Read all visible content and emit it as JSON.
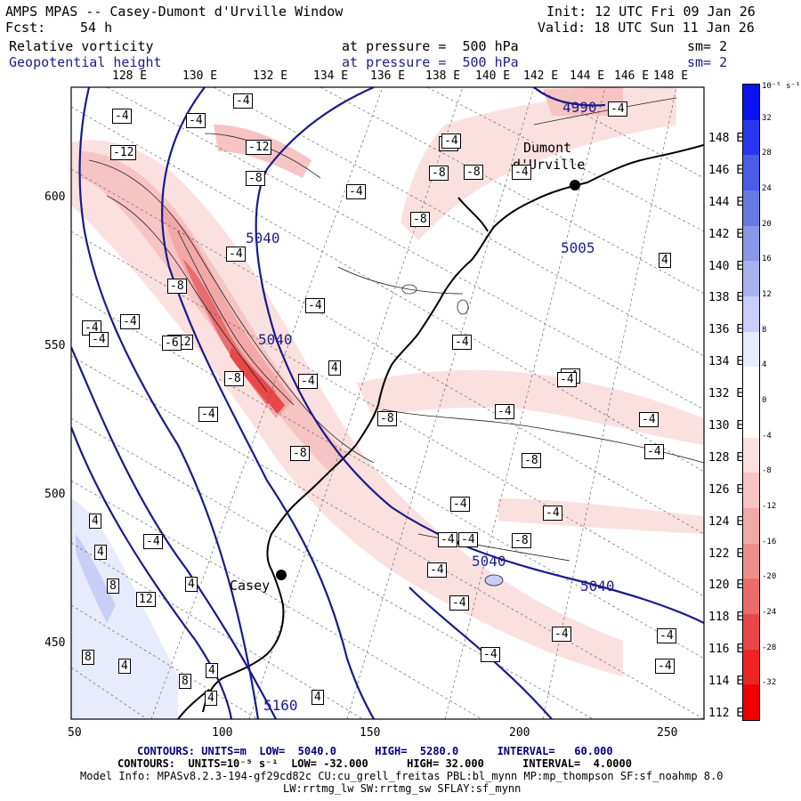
{
  "header": {
    "title": "AMPS MPAS -- Casey-Dumont d'Urville Window",
    "init": "Init: 12 UTC Fri 09 Jan 26",
    "fcst_label": "Fcst:",
    "fcst_value": "54 h",
    "valid": "Valid: 18 UTC Sun 11 Jan 26",
    "field1": {
      "name": "Relative vorticity",
      "level": "at pressure =  500 hPa",
      "smooth": "sm= 2"
    },
    "field2": {
      "name": "Geopotential height",
      "level": "at pressure =  500 hPa",
      "smooth": "sm= 2"
    }
  },
  "top_lon_labels": [
    "128 E",
    "130 E",
    "132 E",
    "134 E",
    "136 E",
    "138 E",
    "140 E",
    "142 E",
    "144 E",
    "146 E",
    "148 E"
  ],
  "right_lat_labels": [
    "148 E",
    "146 E",
    "144 E",
    "142 E",
    "140 E",
    "138 E",
    "136 E",
    "134 E",
    "132 E",
    "130 E",
    "128 E",
    "126 E",
    "124 E",
    "122 E",
    "120 E",
    "118 E",
    "116 E",
    "114 E",
    "112 E"
  ],
  "y_axis_labels": [
    "600",
    "550",
    "500",
    "450"
  ],
  "x_axis_labels": [
    "50",
    "100",
    "150",
    "200",
    "250"
  ],
  "colorbar": {
    "units": "10⁻⁵ s⁻¹",
    "labels": [
      "32",
      "28",
      "24",
      "20",
      "16",
      "12",
      "8",
      "4",
      "0",
      "-4",
      "-8",
      "-12",
      "-16",
      "-20",
      "-24",
      "-28",
      "-32"
    ],
    "colors": [
      "#0a14f0",
      "#2838ee",
      "#4c5ce8",
      "#6a78e4",
      "#8a96e6",
      "#a8b2ee",
      "#c8cef6",
      "#e8ebfb",
      "#ffffff",
      "#ffffff",
      "#fbe0e0",
      "#f7c4c4",
      "#f3a8a8",
      "#ef8c8c",
      "#ea6c6c",
      "#e84848",
      "#ee2424",
      "#f00000"
    ]
  },
  "map_labels": {
    "station1": "Dumont",
    "station1b": "d'Urville",
    "station2": "Casey",
    "height_values": [
      "5040",
      "5040",
      "5040",
      "5040",
      "5005",
      "4990",
      "5160"
    ],
    "vort_boxes": [
      "-4",
      "-4",
      "-4",
      "-12",
      "-12",
      "-8",
      "-4",
      "-4",
      "-8",
      "-8",
      "-8",
      "-4",
      "-8",
      "-12",
      "-8",
      "-4",
      "-4",
      "-8",
      "-4",
      "-4",
      "-6",
      "-8",
      "-4",
      "-4",
      "-8",
      "-4",
      "-8",
      "-4",
      "-4",
      "-4",
      "-4",
      "-4",
      "-4",
      "-4",
      "-4",
      "-4",
      "-4",
      "-4",
      "-4",
      "-4",
      "-4",
      "-4",
      "-4",
      "-4",
      "-4",
      "4",
      "4",
      "4",
      "8",
      "12",
      "4",
      "4",
      "8",
      "4",
      "8",
      "4",
      "4",
      "4",
      "-4"
    ]
  },
  "footer": {
    "line1": "CONTOURS: UNITS=m  LOW=  5040.0      HIGH=  5280.0      INTERVAL=   60.000",
    "line2": "CONTOURS:  UNITS=10⁻⁵ s⁻¹  LOW= -32.000      HIGH= 32.000      INTERVAL=  4.0000",
    "line3": "Model Info: MPASv8.2.3-194-gf29cd82c CU:cu_grell_freitas PBL:bl_mynn MP:mp_thompson SF:sf_noahmp 8.0",
    "line4": "LW:rrtmg_lw SW:rrtmg_sw SFLAY:sf_mynn"
  }
}
